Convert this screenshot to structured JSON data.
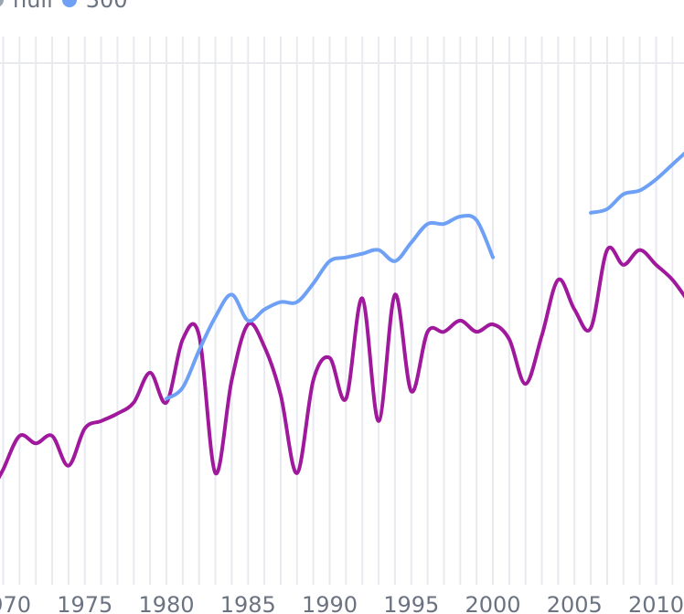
{
  "chart_data": {
    "type": "line",
    "x_tick_labels": [
      "1970",
      "1975",
      "1980",
      "1985",
      "1990",
      "1995",
      "2000",
      "2005",
      "2010"
    ],
    "x_range": [
      1970,
      2012
    ],
    "grid": true,
    "legend": {
      "position": "top-left",
      "items": [
        {
          "label": "null",
          "color": "#9aa6b2"
        },
        {
          "label": "300",
          "color": "#6ea0f5"
        }
      ]
    },
    "series": [
      {
        "color": "#a0199c",
        "points": [
          [
            1969.5,
            82
          ],
          [
            1970,
            86
          ],
          [
            1971,
            95
          ],
          [
            1972,
            93
          ],
          [
            1973,
            95
          ],
          [
            1974,
            87
          ],
          [
            1975,
            97
          ],
          [
            1976,
            99
          ],
          [
            1977,
            101
          ],
          [
            1978,
            104
          ],
          [
            1979,
            112
          ],
          [
            1980,
            104
          ],
          [
            1981,
            121
          ],
          [
            1982,
            122
          ],
          [
            1983,
            85
          ],
          [
            1984,
            110
          ],
          [
            1985,
            125
          ],
          [
            1986,
            119
          ],
          [
            1987,
            106
          ],
          [
            1988,
            85
          ],
          [
            1989,
            110
          ],
          [
            1990,
            116
          ],
          [
            1991,
            105
          ],
          [
            1992,
            132
          ],
          [
            1993,
            99
          ],
          [
            1994,
            133
          ],
          [
            1995,
            107
          ],
          [
            1996,
            123
          ],
          [
            1997,
            123
          ],
          [
            1998,
            126
          ],
          [
            1999,
            123
          ],
          [
            2000,
            125
          ],
          [
            2001,
            121
          ],
          [
            2002,
            109
          ],
          [
            2003,
            122
          ],
          [
            2004,
            137
          ],
          [
            2005,
            129
          ],
          [
            2006,
            124
          ],
          [
            2007,
            145
          ],
          [
            2008,
            141
          ],
          [
            2009,
            145
          ],
          [
            2010,
            141
          ],
          [
            2011,
            137
          ],
          [
            2012,
            131
          ]
        ]
      },
      {
        "color": "#6ea0f5",
        "points": [
          [
            1980,
            105
          ],
          [
            1981,
            108
          ],
          [
            1982,
            118
          ],
          [
            1983,
            127
          ],
          [
            1984,
            133
          ],
          [
            1985,
            126
          ],
          [
            1986,
            129
          ],
          [
            1987,
            131
          ],
          [
            1988,
            131
          ],
          [
            1989,
            136
          ],
          [
            1990,
            142
          ],
          [
            1991,
            143
          ],
          [
            1992,
            144
          ],
          [
            1993,
            145
          ],
          [
            1994,
            142
          ],
          [
            1995,
            147
          ],
          [
            1996,
            152
          ],
          [
            1997,
            152
          ],
          [
            1998,
            154
          ],
          [
            1999,
            153
          ],
          [
            2000,
            143
          ],
          [
            null,
            null
          ],
          [
            2006,
            155
          ],
          [
            2007,
            156
          ],
          [
            2008,
            160
          ],
          [
            2009,
            161
          ],
          [
            2010,
            164
          ],
          [
            2011,
            168
          ],
          [
            2012,
            172
          ]
        ]
      }
    ]
  }
}
